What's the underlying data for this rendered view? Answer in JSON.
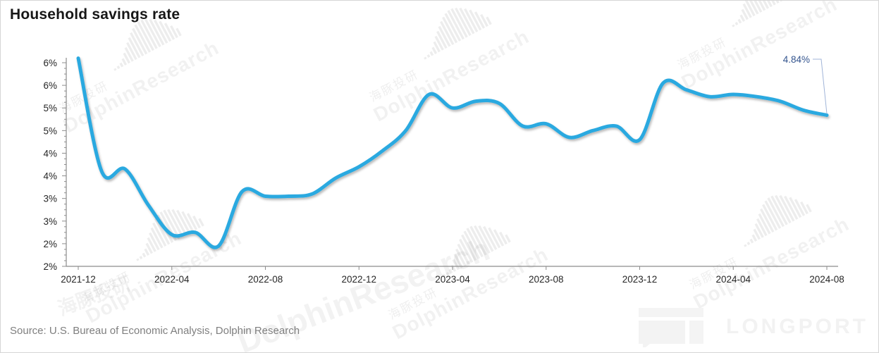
{
  "title": "Household savings rate",
  "source": "Source: U.S. Bureau of Economic Analysis, Dolphin Research",
  "footer_logo": "LONGPORT",
  "watermark": {
    "cn": "海豚投研",
    "en": "DolphinResearch"
  },
  "colors": {
    "line": "#2aa9e0",
    "axis": "#8c8c8c",
    "tick_label": "#262626",
    "annotation_text": "#33548e",
    "callout_line": "#a0b4d8"
  },
  "chart_data": {
    "type": "line",
    "title": "Household savings rate",
    "series_name": "Household savings rate",
    "unit": "%",
    "x": [
      "2021-12",
      "2022-01",
      "2022-02",
      "2022-03",
      "2022-04",
      "2022-05",
      "2022-06",
      "2022-07",
      "2022-08",
      "2022-09",
      "2022-10",
      "2022-11",
      "2022-12",
      "2023-01",
      "2023-02",
      "2023-03",
      "2023-04",
      "2023-05",
      "2023-06",
      "2023-07",
      "2023-08",
      "2023-09",
      "2023-10",
      "2023-11",
      "2023-12",
      "2024-01",
      "2024-02",
      "2024-03",
      "2024-04",
      "2024-05",
      "2024-06",
      "2024-07",
      "2024-08"
    ],
    "values": [
      6.1,
      3.6,
      3.65,
      2.85,
      2.2,
      2.25,
      1.95,
      3.15,
      3.05,
      3.05,
      3.1,
      3.45,
      3.7,
      4.05,
      4.5,
      5.3,
      5.0,
      5.15,
      5.1,
      4.6,
      4.65,
      4.35,
      4.5,
      4.6,
      4.3,
      5.55,
      5.4,
      5.25,
      5.3,
      5.25,
      5.15,
      4.95,
      4.84
    ],
    "ylim": [
      1.5,
      6.0
    ],
    "y_tick_step": 0.5,
    "y_tick_labels": [
      "6%",
      "6%",
      "5%",
      "5%",
      "4%",
      "4%",
      "3%",
      "3%",
      "2%",
      "2%"
    ],
    "x_tick_labels": [
      "2021-12",
      "2022-04",
      "2022-08",
      "2022-12",
      "2023-04",
      "2023-08",
      "2023-12",
      "2024-04",
      "2024-08"
    ],
    "x_tick_indices": [
      0,
      4,
      8,
      12,
      16,
      20,
      24,
      28,
      32
    ],
    "grid": false,
    "legend": "none",
    "annotation": {
      "text": "4.84%",
      "x": "2024-08",
      "y": 4.84
    }
  }
}
